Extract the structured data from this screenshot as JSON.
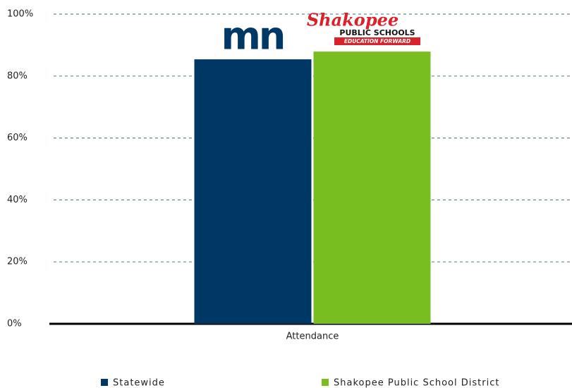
{
  "chart_data": {
    "type": "bar",
    "categories": [
      "Attendance"
    ],
    "series": [
      {
        "name": "Statewide",
        "color": "#003865",
        "values": [
          85.4
        ]
      },
      {
        "name": "Shakopee Public School District",
        "color": "#78be21",
        "values": [
          87.9
        ]
      }
    ],
    "ylim": [
      0,
      100
    ],
    "yticks": [
      {
        "value": 0,
        "label": "0%"
      },
      {
        "value": 20,
        "label": "20%"
      },
      {
        "value": 40,
        "label": "40%"
      },
      {
        "value": 60,
        "label": "60%"
      },
      {
        "value": 80,
        "label": "80%"
      },
      {
        "value": 100,
        "label": "100%"
      }
    ],
    "grid": true,
    "legend": "bottom",
    "annotations": [
      "mn",
      "Shakopee",
      "PUBLIC SCHOOLS",
      "EDUCATION FORWARD"
    ]
  }
}
